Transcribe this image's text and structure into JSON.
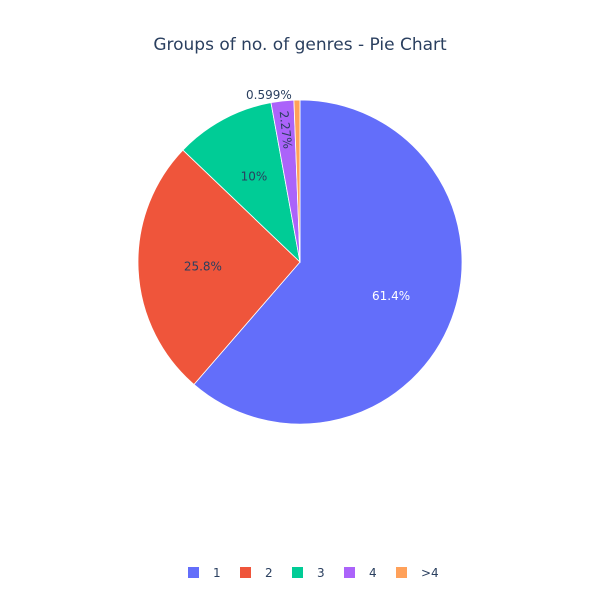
{
  "chart_data": {
    "type": "pie",
    "title": "Groups of no. of genres - Pie Chart",
    "categories": [
      "1",
      "2",
      "3",
      "4",
      ">4"
    ],
    "values": [
      61.4,
      25.8,
      10.0,
      2.27,
      0.599
    ],
    "labels": [
      "61.4%",
      "25.8%",
      "10%",
      "2.27%",
      "0.599%"
    ],
    "colors": [
      "#636efa",
      "#ef553b",
      "#00cc96",
      "#ab63fa",
      "#ffa15a"
    ],
    "label_colors": [
      "#ffffff",
      "#2a3f5f",
      "#2a3f5f",
      "#2a3f5f",
      "#2a3f5f"
    ],
    "direction": "clockwise",
    "start": "top",
    "legend_placement": "bottom-center",
    "legend": [
      {
        "label": "1",
        "color": "#636efa"
      },
      {
        "label": "2",
        "color": "#ef553b"
      },
      {
        "label": "3",
        "color": "#00cc96"
      },
      {
        "label": "4",
        "color": "#ab63fa"
      },
      {
        "label": ">4",
        "color": "#ffa15a"
      }
    ]
  }
}
